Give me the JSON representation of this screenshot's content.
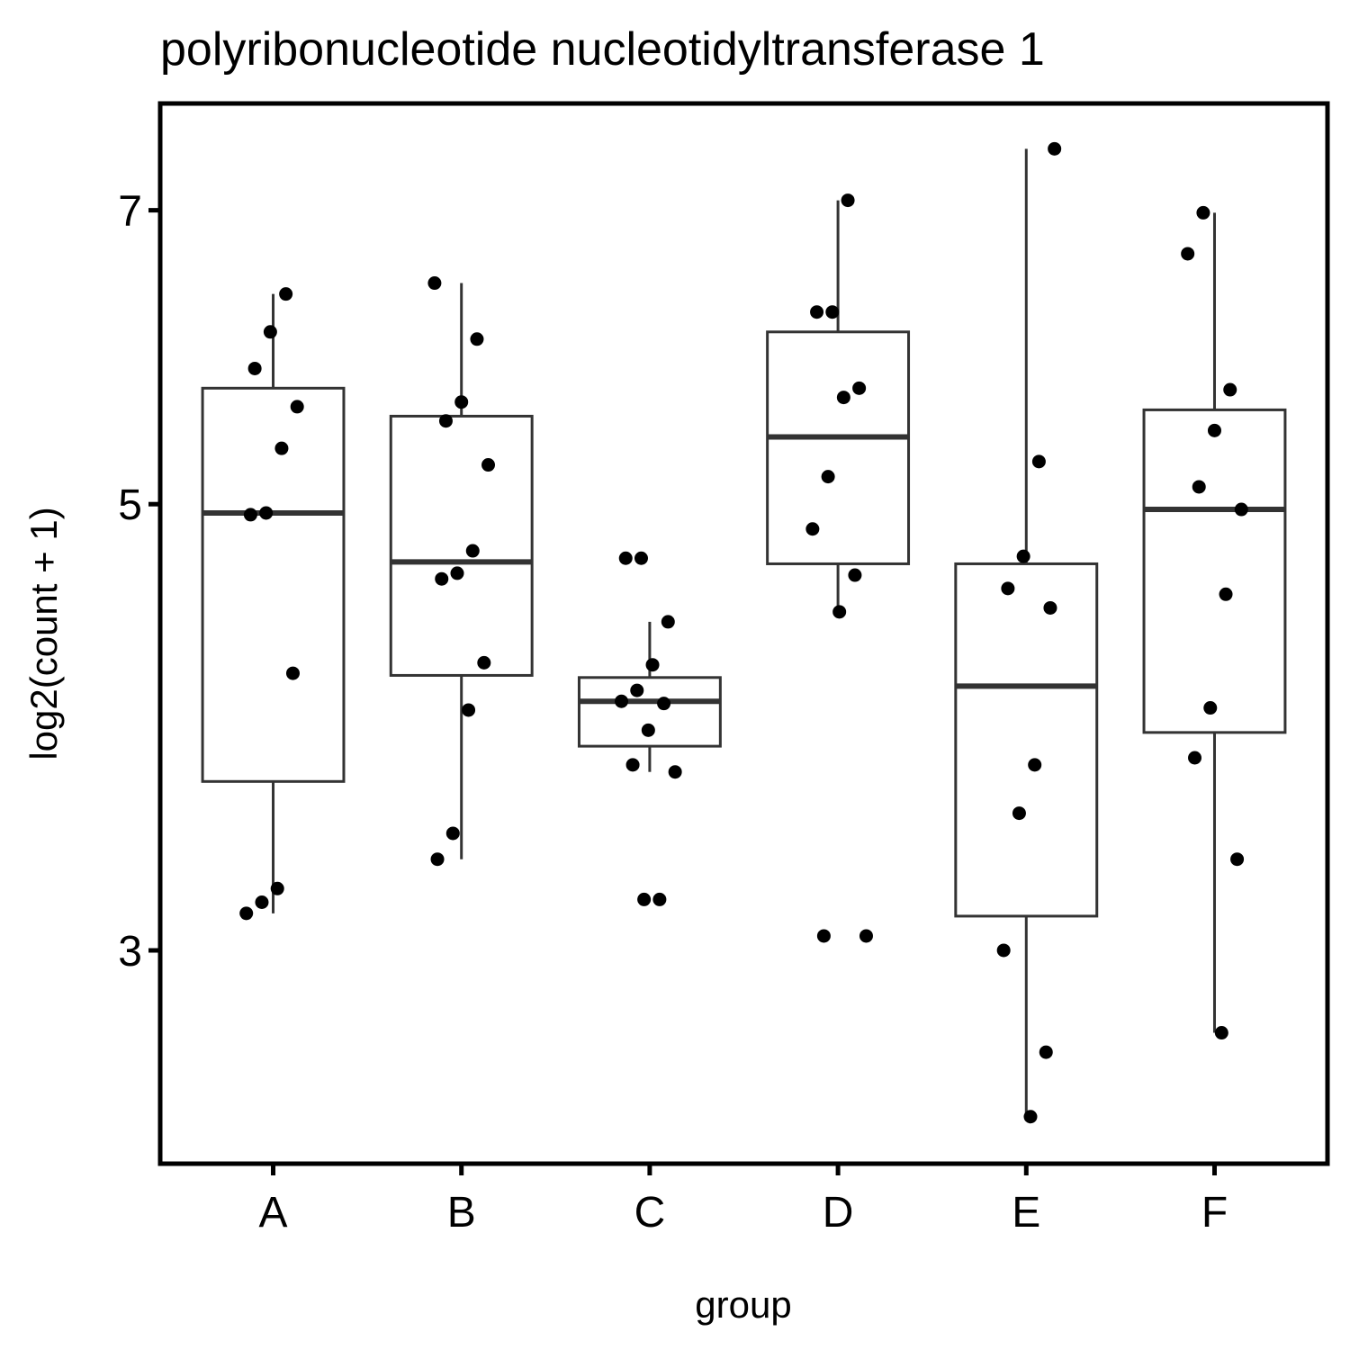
{
  "chart_data": {
    "type": "box",
    "title": "polyribonucleotide nucleotidyltransferase 1",
    "x_label": "group",
    "y_label": "log2(count + 1)",
    "categories": [
      "A",
      "B",
      "C",
      "D",
      "E",
      "F"
    ],
    "boxes": [
      {
        "whisker_low": 3.13,
        "q1": 3.64,
        "median": 4.95,
        "q3": 5.71,
        "whisker_high": 6.36
      },
      {
        "whisker_low": 3.33,
        "q1": 4.11,
        "median": 4.68,
        "q3": 5.53,
        "whisker_high": 6.44
      },
      {
        "whisker_low": 3.68,
        "q1": 3.79,
        "median": 3.99,
        "q3": 4.1,
        "whisker_high": 4.37
      },
      {
        "whisker_low": 4.42,
        "q1": 4.67,
        "median": 5.4,
        "q3": 6.09,
        "whisker_high": 7.08
      },
      {
        "whisker_low": 2.48,
        "q1": 3.12,
        "median": 4.06,
        "q3": 4.67,
        "whisker_high": 7.51
      },
      {
        "whisker_low": 2.73,
        "q1": 3.85,
        "median": 4.97,
        "q3": 5.57,
        "whisker_high": 6.98
      }
    ],
    "points": [
      [
        6.36,
        6.09,
        5.84,
        5.59,
        5.33,
        4.95,
        4.94,
        4.12,
        3.22,
        3.17,
        3.13
      ],
      [
        6.44,
        6.04,
        5.62,
        5.5,
        5.23,
        4.74,
        4.62,
        4.59,
        4.17,
        3.95,
        3.43,
        3.33
      ],
      [
        4.7,
        4.7,
        4.37,
        4.16,
        4.04,
        3.99,
        3.98,
        3.86,
        3.71,
        3.68,
        3.18,
        3.18
      ],
      [
        7.08,
        6.23,
        6.23,
        5.71,
        5.65,
        5.16,
        4.86,
        4.61,
        4.42,
        3.05,
        3.05
      ],
      [
        7.51,
        5.25,
        4.71,
        4.54,
        4.44,
        3.71,
        3.51,
        3.0,
        2.67,
        2.48
      ],
      [
        6.98,
        6.66,
        5.7,
        5.44,
        5.1,
        4.97,
        4.51,
        3.96,
        3.74,
        3.33,
        2.73
      ]
    ],
    "box_color": "#333333",
    "point_color": "#000000",
    "log_scale": true,
    "ylim": [
      2.35,
      7.91
    ],
    "yticks": [
      3,
      5,
      7
    ]
  }
}
